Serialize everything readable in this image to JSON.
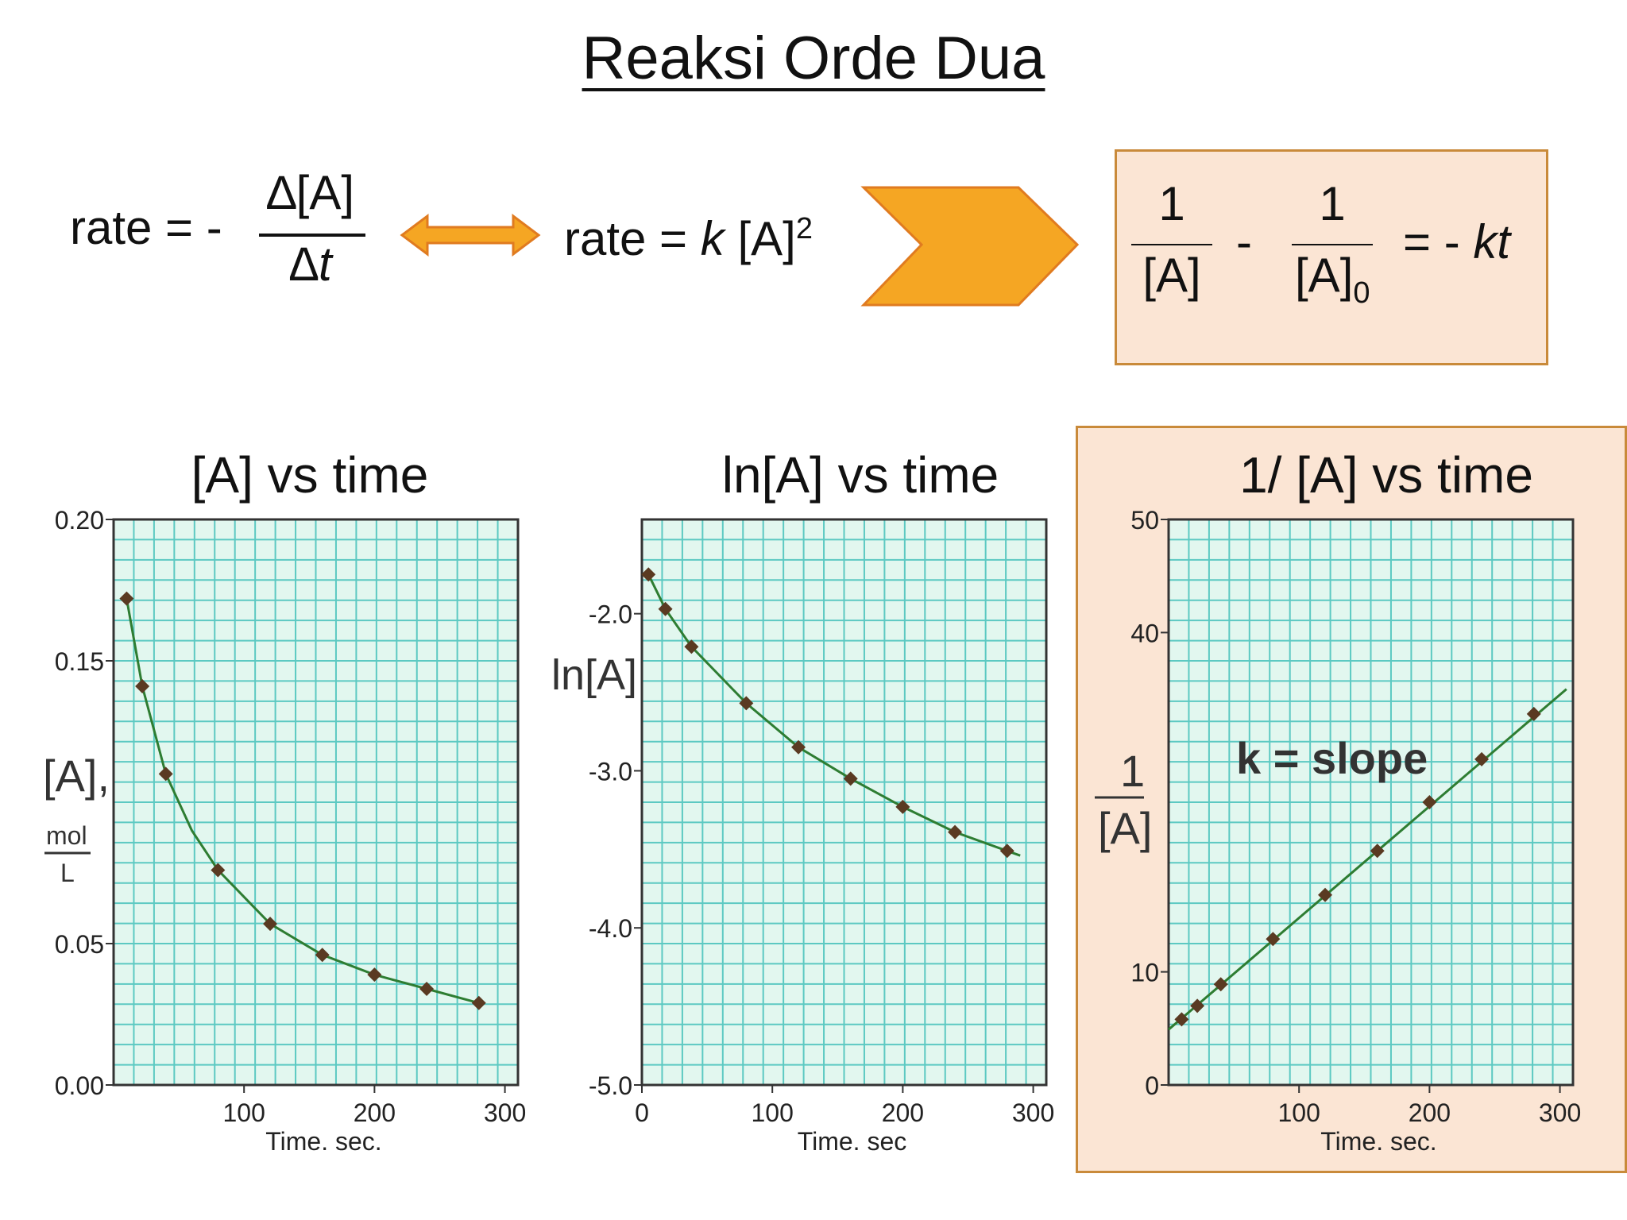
{
  "slide": {
    "title": "Reaksi Orde Dua",
    "rate_def": {
      "lhs": "rate = -",
      "num": "∆[A]",
      "den": "∆t"
    },
    "rate_law": {
      "prefix": "rate =",
      "k": "k",
      "conc": "[A]",
      "exp": "2"
    },
    "integrated": {
      "num1": "1",
      "den1": "[A]",
      "minus": "-",
      "num2": "1",
      "den2": "[A]",
      "den2_sub": "0",
      "rhs": "= -",
      "kt": "kt"
    },
    "colors": {
      "arrow_fill": "#f5a623",
      "box_fill": "#fbe5d4",
      "box_border": "#c98a3a",
      "grid_bg": "#e2f7ef",
      "grid_line": "#5cc9c2",
      "curve": "#2e7d32",
      "point": "#5a3a22"
    }
  },
  "chart_data": [
    {
      "type": "line",
      "title": "[A]  vs time",
      "xlabel": "Time. sec.",
      "ylabel": "[A],",
      "ylabel_unit_num": "mol",
      "ylabel_unit_den": "L",
      "xlim": [
        0,
        310
      ],
      "ylim": [
        0,
        0.2
      ],
      "grid": true,
      "x_ticks": [
        {
          "v": 100,
          "t": "100"
        },
        {
          "v": 200,
          "t": "200"
        },
        {
          "v": 300,
          "t": "300"
        }
      ],
      "y_ticks": [
        {
          "v": 0,
          "t": "0.00"
        },
        {
          "v": 0.05,
          "t": "0.05"
        },
        {
          "v": 0.15,
          "t": "0.15"
        },
        {
          "v": 0.2,
          "t": "0.20"
        }
      ],
      "x": [
        10,
        22,
        40,
        80,
        120,
        160,
        200,
        240,
        280
      ],
      "values": [
        0.172,
        0.141,
        0.11,
        0.076,
        0.057,
        0.046,
        0.039,
        0.034,
        0.029
      ],
      "fit": [
        [
          10,
          0.172
        ],
        [
          22,
          0.141
        ],
        [
          40,
          0.11
        ],
        [
          60,
          0.09
        ],
        [
          80,
          0.076
        ],
        [
          120,
          0.057
        ],
        [
          160,
          0.046
        ],
        [
          200,
          0.039
        ],
        [
          240,
          0.034
        ],
        [
          280,
          0.029
        ]
      ]
    },
    {
      "type": "line",
      "title": "ln[A] vs time",
      "xlabel": "Time. sec",
      "ylabel": "ln[A]",
      "xlim": [
        0,
        310
      ],
      "ylim": [
        -5.0,
        -1.4
      ],
      "grid": true,
      "x_ticks": [
        {
          "v": 0,
          "t": "0"
        },
        {
          "v": 100,
          "t": "100"
        },
        {
          "v": 200,
          "t": "200"
        },
        {
          "v": 300,
          "t": "300"
        }
      ],
      "y_ticks": [
        {
          "v": -2.0,
          "t": "-2.0"
        },
        {
          "v": -3.0,
          "t": "-3.0"
        },
        {
          "v": -4.0,
          "t": "-4.0"
        },
        {
          "v": -5.0,
          "t": "-5.0"
        }
      ],
      "x": [
        5,
        18,
        38,
        80,
        120,
        160,
        200,
        240,
        280
      ],
      "values": [
        -1.75,
        -1.97,
        -2.21,
        -2.57,
        -2.85,
        -3.05,
        -3.23,
        -3.39,
        -3.51
      ],
      "fit": [
        [
          5,
          -1.75
        ],
        [
          18,
          -1.97
        ],
        [
          38,
          -2.21
        ],
        [
          80,
          -2.57
        ],
        [
          120,
          -2.85
        ],
        [
          160,
          -3.05
        ],
        [
          200,
          -3.23
        ],
        [
          240,
          -3.39
        ],
        [
          280,
          -3.51
        ],
        [
          290,
          -3.54
        ]
      ]
    },
    {
      "type": "line",
      "title": "1/ [A] vs time",
      "xlabel": "Time. sec.",
      "ylabel_num": "1",
      "ylabel_den": "[A]",
      "annotation": "k = slope",
      "xlim": [
        0,
        310
      ],
      "ylim": [
        0,
        50
      ],
      "grid": true,
      "x_ticks": [
        {
          "v": 100,
          "t": "100"
        },
        {
          "v": 200,
          "t": "200"
        },
        {
          "v": 300,
          "t": "300"
        }
      ],
      "y_ticks": [
        {
          "v": 0,
          "t": "0"
        },
        {
          "v": 10,
          "t": "10"
        },
        {
          "v": 40,
          "t": "40"
        },
        {
          "v": 50,
          "t": "50"
        }
      ],
      "x": [
        10,
        22,
        40,
        80,
        120,
        160,
        200,
        240,
        280
      ],
      "values": [
        5.8,
        7.0,
        8.9,
        12.9,
        16.8,
        20.7,
        25.0,
        28.8,
        32.8
      ],
      "fit": [
        [
          0,
          4.9
        ],
        [
          305,
          35.0
        ]
      ]
    }
  ]
}
